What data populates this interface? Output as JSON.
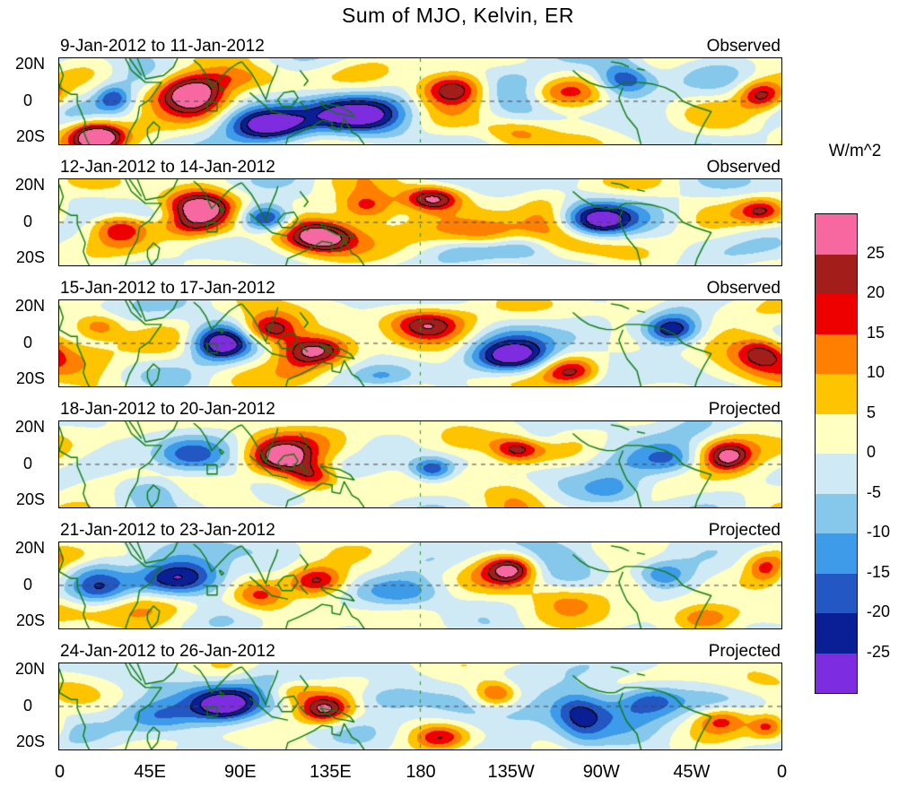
{
  "title": "Sum of MJO, Kelvin, ER",
  "colorbar": {
    "label": "W/m^2",
    "tick_labels": [
      "25",
      "20",
      "15",
      "10",
      "5",
      "0",
      "-5",
      "-10",
      "-15",
      "-20",
      "-25"
    ],
    "colors_top_to_bottom": [
      "#F768A1",
      "#A31D1A",
      "#EE0000",
      "#FF7F00",
      "#FFC400",
      "#FFFFC2",
      "#CFE9F5",
      "#86C7EC",
      "#3D9BE9",
      "#2257C4",
      "#0A1E96",
      "#7D2CDF"
    ]
  },
  "axis": {
    "y_ticks": [
      "20N",
      "0",
      "20S"
    ],
    "x_ticks": [
      "0",
      "45E",
      "90E",
      "135E",
      "180",
      "135W",
      "90W",
      "45W",
      "0"
    ]
  },
  "chart_data": {
    "type": "heatmap",
    "title": "Sum of MJO, Kelvin, ER",
    "units": "W/m^2",
    "colorbar_levels": [
      -25,
      -20,
      -15,
      -10,
      -5,
      0,
      5,
      10,
      15,
      20,
      25
    ],
    "lon_range": [
      0,
      360
    ],
    "lat_range": [
      -25,
      25
    ],
    "x_tick_labels": [
      "0",
      "45E",
      "90E",
      "135E",
      "180",
      "135W",
      "90W",
      "45W",
      "0"
    ],
    "y_tick_labels": [
      "20N",
      "0",
      "20S"
    ],
    "grid_lines": {
      "equator_dashed": true,
      "dateline_dashed": true
    },
    "reference_box": {
      "lon": 76,
      "lat": -3
    },
    "anomaly_format": [
      "lon_E",
      "lat_N",
      "peak_Wm2",
      "sigma_lon_deg",
      "sigma_lat_deg"
    ],
    "panels": [
      {
        "date": "9-Jan-2012 to 11-Jan-2012",
        "type": "Observed",
        "anomalies": [
          [
            65,
            6,
            33,
            13,
            8
          ],
          [
            18,
            -20,
            30,
            9,
            6
          ],
          [
            27,
            2,
            -18,
            6,
            5
          ],
          [
            105,
            -13,
            -33,
            14,
            7
          ],
          [
            148,
            -7,
            -26,
            20,
            8
          ],
          [
            196,
            8,
            30,
            12,
            7
          ],
          [
            252,
            6,
            16,
            14,
            7
          ],
          [
            282,
            12,
            -20,
            10,
            6
          ],
          [
            350,
            4,
            22,
            8,
            6
          ],
          [
            228,
            -18,
            14,
            12,
            6
          ]
        ]
      },
      {
        "date": "12-Jan-2012 to 14-Jan-2012",
        "type": "Observed",
        "anomalies": [
          [
            70,
            8,
            33,
            12,
            8
          ],
          [
            103,
            2,
            -30,
            9,
            6
          ],
          [
            130,
            -8,
            31,
            14,
            7
          ],
          [
            152,
            9,
            20,
            10,
            6
          ],
          [
            186,
            14,
            26,
            10,
            5
          ],
          [
            268,
            1,
            -30,
            12,
            7
          ],
          [
            230,
            -13,
            -14,
            12,
            6
          ],
          [
            350,
            7,
            18,
            8,
            5
          ],
          [
            30,
            -5,
            14,
            10,
            6
          ],
          [
            205,
            -16,
            -12,
            14,
            6
          ]
        ]
      },
      {
        "date": "15-Jan-2012 to 17-Jan-2012",
        "type": "Observed",
        "anomalies": [
          [
            80,
            0,
            -30,
            10,
            7
          ],
          [
            105,
            8,
            26,
            10,
            6
          ],
          [
            127,
            -4,
            25,
            12,
            6
          ],
          [
            225,
            -8,
            -31,
            14,
            7
          ],
          [
            255,
            -16,
            21,
            10,
            6
          ],
          [
            183,
            10,
            16,
            12,
            6
          ],
          [
            305,
            8,
            -25,
            10,
            6
          ],
          [
            350,
            -5,
            15,
            8,
            6
          ],
          [
            20,
            10,
            14,
            8,
            5
          ],
          [
            160,
            -20,
            -12,
            12,
            5
          ]
        ]
      },
      {
        "date": "18-Jan-2012 to 20-Jan-2012",
        "type": "Projected",
        "anomalies": [
          [
            110,
            4,
            25,
            11,
            7
          ],
          [
            126,
            -7,
            21,
            9,
            6
          ],
          [
            65,
            5,
            -15,
            12,
            7
          ],
          [
            186,
            -3,
            -23,
            8,
            5
          ],
          [
            228,
            10,
            23,
            9,
            6
          ],
          [
            333,
            5,
            21,
            8,
            6
          ],
          [
            276,
            -15,
            -11,
            12,
            6
          ],
          [
            45,
            -15,
            -10,
            10,
            5
          ],
          [
            305,
            3,
            -12,
            10,
            6
          ],
          [
            205,
            14,
            10,
            14,
            6
          ]
        ]
      },
      {
        "date": "21-Jan-2012 to 23-Jan-2012",
        "type": "Projected",
        "anomalies": [
          [
            62,
            4,
            -27,
            16,
            8
          ],
          [
            128,
            3,
            23,
            10,
            6
          ],
          [
            100,
            -6,
            15,
            9,
            6
          ],
          [
            225,
            10,
            25,
            9,
            6
          ],
          [
            170,
            -4,
            -13,
            14,
            6
          ],
          [
            300,
            6,
            -15,
            10,
            6
          ],
          [
            322,
            -19,
            13,
            10,
            5
          ],
          [
            20,
            -3,
            -10,
            10,
            6
          ],
          [
            255,
            -8,
            10,
            14,
            6
          ],
          [
            352,
            10,
            12,
            6,
            5
          ]
        ]
      },
      {
        "date": "24-Jan-2012 to 26-Jan-2012",
        "type": "Projected",
        "anomalies": [
          [
            82,
            1,
            -27,
            12,
            7
          ],
          [
            50,
            -6,
            -15,
            14,
            7
          ],
          [
            132,
            -2,
            21,
            9,
            6
          ],
          [
            116,
            9,
            12,
            9,
            5
          ],
          [
            218,
            8,
            22,
            8,
            6
          ],
          [
            190,
            -18,
            16,
            9,
            5
          ],
          [
            295,
            4,
            -13,
            10,
            6
          ],
          [
            330,
            -8,
            14,
            9,
            5
          ],
          [
            353,
            -12,
            16,
            6,
            5
          ],
          [
            160,
            5,
            -10,
            12,
            6
          ]
        ]
      }
    ]
  }
}
